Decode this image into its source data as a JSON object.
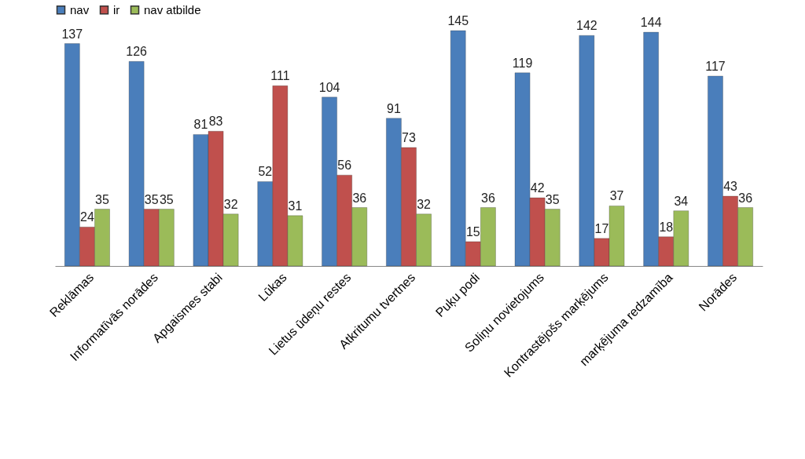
{
  "chart_data": {
    "type": "bar",
    "categories": [
      "Reklāmas",
      "Informatīvās norādes",
      "Apgaismes stabi",
      "Lūkas",
      "Lietus ūdeņu restes",
      "Atkritumu tvertnes",
      "Puķu podi",
      "Soliņu novietojums",
      "Kontrastējošs marķējums",
      "marķējuma redzamība",
      "Norādes"
    ],
    "series": [
      {
        "name": "nav",
        "color": "#4a7ebb",
        "values": [
          137,
          126,
          81,
          52,
          104,
          91,
          145,
          119,
          142,
          144,
          117
        ]
      },
      {
        "name": "ir",
        "color": "#c0504d",
        "values": [
          24,
          35,
          83,
          111,
          56,
          73,
          15,
          42,
          17,
          18,
          43
        ]
      },
      {
        "name": "nav atbilde",
        "color": "#9bbb59",
        "values": [
          35,
          35,
          32,
          31,
          36,
          32,
          36,
          35,
          37,
          34,
          36
        ]
      }
    ],
    "data_labels": true,
    "legend": "top",
    "grid": false
  }
}
